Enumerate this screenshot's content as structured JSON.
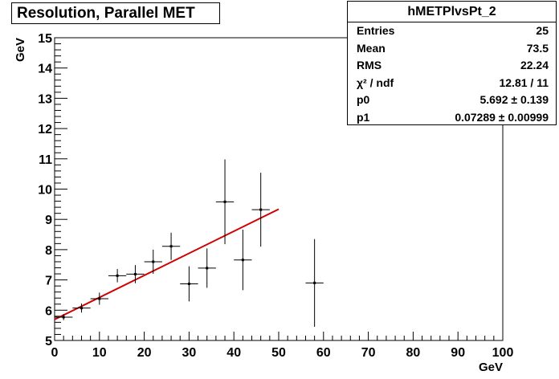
{
  "chart_data": {
    "type": "scatter",
    "title": "Resolution, Parallel MET",
    "xlabel": "GeV",
    "ylabel": "GeV",
    "xlim": [
      0,
      100
    ],
    "ylim": [
      5,
      15
    ],
    "x_ticks": [
      0,
      10,
      20,
      30,
      40,
      50,
      60,
      70,
      80,
      90,
      100
    ],
    "y_ticks": [
      5,
      6,
      7,
      8,
      9,
      10,
      11,
      12,
      13,
      14,
      15
    ],
    "grid": false,
    "points": [
      {
        "x": 2,
        "xerr": 2,
        "y": 5.77,
        "yerr": 0.1
      },
      {
        "x": 6,
        "xerr": 2,
        "y": 6.07,
        "yerr": 0.15
      },
      {
        "x": 10,
        "xerr": 2,
        "y": 6.38,
        "yerr": 0.2
      },
      {
        "x": 14,
        "xerr": 2,
        "y": 7.14,
        "yerr": 0.22
      },
      {
        "x": 18,
        "xerr": 2,
        "y": 7.19,
        "yerr": 0.3
      },
      {
        "x": 22,
        "xerr": 2,
        "y": 7.6,
        "yerr": 0.4
      },
      {
        "x": 26,
        "xerr": 2,
        "y": 8.11,
        "yerr": 0.45
      },
      {
        "x": 30,
        "xerr": 2,
        "y": 6.87,
        "yerr": 0.58
      },
      {
        "x": 34,
        "xerr": 2,
        "y": 7.39,
        "yerr": 0.65
      },
      {
        "x": 38,
        "xerr": 2,
        "y": 9.58,
        "yerr": 1.4
      },
      {
        "x": 42,
        "xerr": 2,
        "y": 7.66,
        "yerr": 1.0
      },
      {
        "x": 46,
        "xerr": 2,
        "y": 9.32,
        "yerr": 1.22
      },
      {
        "x": 58,
        "xerr": 2,
        "y": 6.9,
        "yerr": 1.45
      }
    ],
    "fit": {
      "color": "#d00000",
      "p0": 5.692,
      "p1": 0.07289,
      "xrange": [
        0,
        50
      ]
    }
  },
  "stats": {
    "name": "hMETPlvsPt_2",
    "rows": [
      {
        "label": "Entries",
        "value": "25"
      },
      {
        "label": "Mean",
        "value": "73.5"
      },
      {
        "label": "RMS",
        "value": "22.24"
      },
      {
        "label": "χ² / ndf",
        "value": "12.81 / 11"
      },
      {
        "label": "p0",
        "value": "5.692 ± 0.139"
      },
      {
        "label": "p1",
        "value": "0.07289 ± 0.00999"
      }
    ]
  }
}
